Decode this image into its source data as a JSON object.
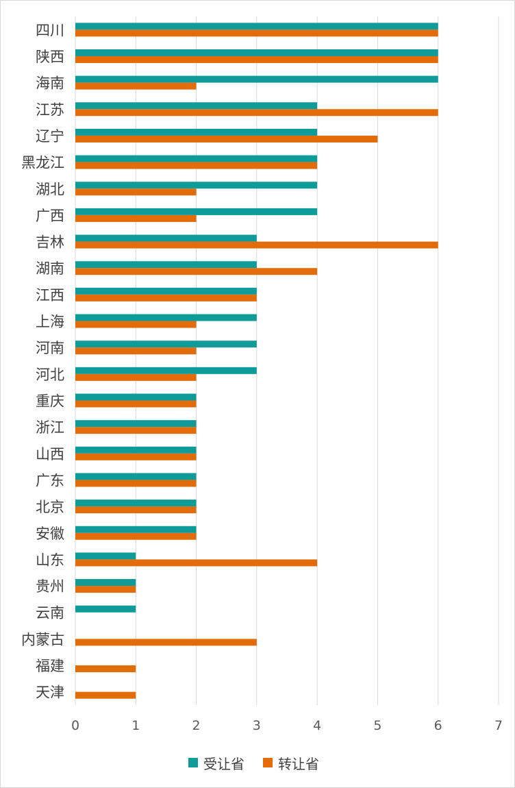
{
  "chart_data": {
    "type": "bar",
    "orientation": "horizontal",
    "categories": [
      "四川",
      "陕西",
      "海南",
      "江苏",
      "辽宁",
      "黑龙江",
      "湖北",
      "广西",
      "吉林",
      "湖南",
      "江西",
      "上海",
      "河南",
      "河北",
      "重庆",
      "浙江",
      "山西",
      "广东",
      "北京",
      "安徽",
      "山东",
      "贵州",
      "云南",
      "内蒙古",
      "福建",
      "天津"
    ],
    "series": [
      {
        "name": "受让省",
        "color": "#0f9b98",
        "values": [
          6,
          6,
          6,
          4,
          4,
          4,
          4,
          4,
          3,
          3,
          3,
          3,
          3,
          3,
          2,
          2,
          2,
          2,
          2,
          2,
          1,
          1,
          1,
          0,
          0,
          0
        ]
      },
      {
        "name": "转让省",
        "color": "#e36c0a",
        "values": [
          6,
          6,
          2,
          6,
          5,
          4,
          2,
          2,
          6,
          4,
          3,
          2,
          2,
          2,
          2,
          2,
          2,
          2,
          2,
          2,
          4,
          1,
          0,
          3,
          1,
          1
        ]
      }
    ],
    "xlim": [
      0,
      7
    ],
    "xticks": [
      "0",
      "1",
      "2",
      "3",
      "4",
      "5",
      "6",
      "7"
    ],
    "grid": "vertical",
    "legend_position": "bottom"
  }
}
